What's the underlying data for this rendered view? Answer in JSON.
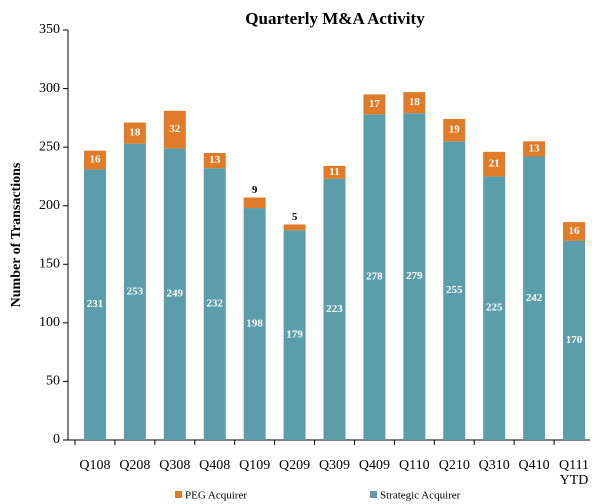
{
  "chart_data": {
    "type": "stacked_bar",
    "title": "Quarterly M&A Activity",
    "y_label": "Number of Transactions",
    "categories": [
      "Q108",
      "Q208",
      "Q308",
      "Q408",
      "Q109",
      "Q209",
      "Q309",
      "Q409",
      "Q110",
      "Q210",
      "Q310",
      "Q410",
      "Q111 YTD"
    ],
    "series": [
      {
        "name": "Strategic Acquirer",
        "color": "#5b9daa",
        "values": [
          231,
          253,
          249,
          232,
          198,
          179,
          223,
          278,
          279,
          255,
          225,
          242,
          170
        ]
      },
      {
        "name": "PEG Acquirer",
        "color": "#e07b2a",
        "values": [
          16,
          18,
          32,
          13,
          9,
          5,
          11,
          17,
          18,
          19,
          21,
          13,
          16
        ]
      }
    ],
    "legend_order": [
      1,
      0
    ],
    "ylim": [
      0,
      350
    ],
    "yticks": [
      0,
      50,
      100,
      150,
      200,
      250,
      300,
      350
    ],
    "grid": false
  }
}
